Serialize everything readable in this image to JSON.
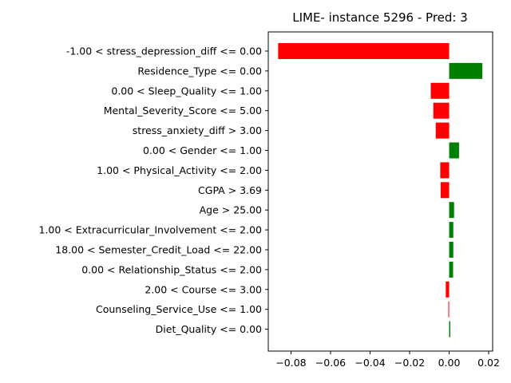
{
  "chart_data": {
    "type": "bar",
    "orientation": "horizontal",
    "title": "LIME- instance 5296 - Pred: 3",
    "xlabel": "",
    "ylabel": "",
    "categories": [
      "-1.00 < stress_depression_diff <= 0.00",
      "Residence_Type <= 0.00",
      "0.00 < Sleep_Quality <= 1.00",
      "Mental_Severity_Score <= 5.00",
      "stress_anxiety_diff > 3.00",
      "0.00 < Gender <= 1.00",
      "1.00 < Physical_Activity <= 2.00",
      "CGPA > 3.69",
      "Age > 25.00",
      "1.00 < Extracurricular_Involvement <= 2.00",
      "18.00 < Semester_Credit_Load <= 22.00",
      "0.00 < Relationship_Status <= 2.00",
      "2.00 < Course <= 3.00",
      "Counseling_Service_Use <= 1.00",
      "Diet_Quality <= 0.00"
    ],
    "values": [
      -0.0865,
      0.0168,
      -0.0093,
      -0.008,
      -0.0068,
      0.005,
      -0.0045,
      -0.0043,
      0.0025,
      0.0021,
      0.0021,
      0.002,
      -0.0017,
      -0.0004,
      0.0006
    ],
    "xlim": [
      -0.0915,
      0.022
    ],
    "xticks": [
      -0.08,
      -0.06,
      -0.04,
      -0.02,
      0.0,
      0.02
    ],
    "xtick_labels": [
      "−0.08",
      "−0.06",
      "−0.04",
      "−0.02",
      "0.00",
      "0.02"
    ],
    "grid": false,
    "colors": {
      "positive": "#008000",
      "negative": "#ff0000"
    }
  }
}
